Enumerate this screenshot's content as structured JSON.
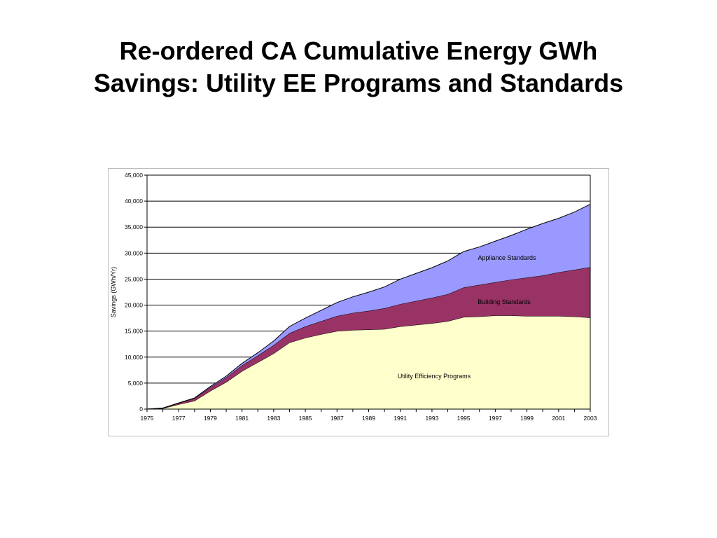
{
  "slide": {
    "title_line1": "Re-ordered CA Cumulative Energy GWh",
    "title_line2": "Savings: Utility EE Programs and Standards"
  },
  "chart_data": {
    "type": "area",
    "stacked": true,
    "title": "",
    "xlabel": "",
    "ylabel": "Savings (GWh/Yr)",
    "xlim": [
      1975,
      2003
    ],
    "ylim": [
      0,
      45000
    ],
    "y_ticks": [
      0,
      5000,
      10000,
      15000,
      20000,
      25000,
      30000,
      35000,
      40000,
      45000
    ],
    "x_ticks": [
      1975,
      1977,
      1979,
      1981,
      1983,
      1985,
      1987,
      1989,
      1991,
      1993,
      1995,
      1997,
      1999,
      2001,
      2003
    ],
    "grid": "horizontal",
    "legend": "none",
    "x": [
      1975,
      1976,
      1977,
      1978,
      1979,
      1980,
      1981,
      1982,
      1983,
      1984,
      1985,
      1986,
      1987,
      1988,
      1989,
      1990,
      1991,
      1992,
      1993,
      1994,
      1995,
      1996,
      1997,
      1998,
      1999,
      2000,
      2001,
      2002,
      2003
    ],
    "series": [
      {
        "name": "Utility Efficiency Programs",
        "color": "#ffffcc",
        "values": [
          0,
          150,
          900,
          1600,
          3500,
          5200,
          7300,
          9000,
          10700,
          12800,
          13700,
          14400,
          15000,
          15200,
          15300,
          15400,
          15900,
          16200,
          16500,
          16900,
          17700,
          17800,
          18000,
          18000,
          17900,
          17900,
          17900,
          17800,
          17600
        ]
      },
      {
        "name": "Building Standards",
        "color": "#993366",
        "values": [
          0,
          50,
          250,
          450,
          700,
          900,
          1100,
          1300,
          1600,
          1800,
          2200,
          2500,
          2900,
          3300,
          3600,
          4000,
          4300,
          4600,
          4900,
          5200,
          5700,
          6100,
          6400,
          6900,
          7400,
          7800,
          8400,
          9000,
          9700
        ]
      },
      {
        "name": "Appliance Standards",
        "color": "#9999ff",
        "values": [
          0,
          0,
          50,
          100,
          150,
          250,
          400,
          550,
          800,
          1300,
          1600,
          2100,
          2600,
          3100,
          3600,
          4100,
          4800,
          5300,
          5800,
          6400,
          6900,
          7300,
          7900,
          8500,
          9300,
          10000,
          10400,
          11100,
          12100
        ]
      }
    ],
    "area_labels": {
      "utility": "Utility Efficiency Programs",
      "building": "Building Standards",
      "appliance": "Appliance Standards"
    },
    "colors": {
      "line": "#000000",
      "grid": "#000000",
      "frame_border": "#bdbdbd"
    }
  }
}
